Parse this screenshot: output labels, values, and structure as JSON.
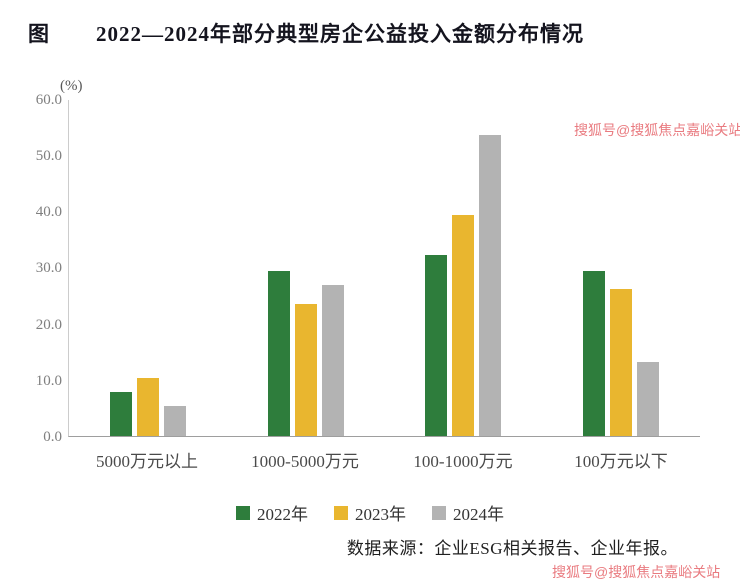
{
  "header": {
    "figure_label": "图",
    "title": "2022—2024年部分典型房企公益投入金额分布情况"
  },
  "chart_data": {
    "type": "bar",
    "title": "2022—2024年部分典型房企公益投入金额分布情况",
    "unit_label": "(%)",
    "categories": [
      "5000万元以上",
      "1000-5000万元",
      "100-1000万元",
      "100万元以下"
    ],
    "series": [
      {
        "name": "2022年",
        "color": "#2e7d3c",
        "values": [
          7.9,
          29.5,
          32.4,
          29.5
        ]
      },
      {
        "name": "2023年",
        "color": "#e9b62f",
        "values": [
          10.3,
          23.5,
          39.4,
          26.2
        ]
      },
      {
        "name": "2024年",
        "color": "#b3b3b3",
        "values": [
          5.4,
          26.9,
          53.8,
          13.3
        ]
      }
    ],
    "ylim": [
      0,
      60
    ],
    "yticks": [
      "60.0",
      "50.0",
      "40.0",
      "30.0",
      "20.0",
      "10.0",
      "0.0"
    ],
    "grid": false,
    "legend_position": "bottom"
  },
  "footer": {
    "source": "数据来源：企业ESG相关报告、企业年报。"
  },
  "watermark": {
    "text": "搜狐号@搜狐焦点嘉峪关站"
  }
}
